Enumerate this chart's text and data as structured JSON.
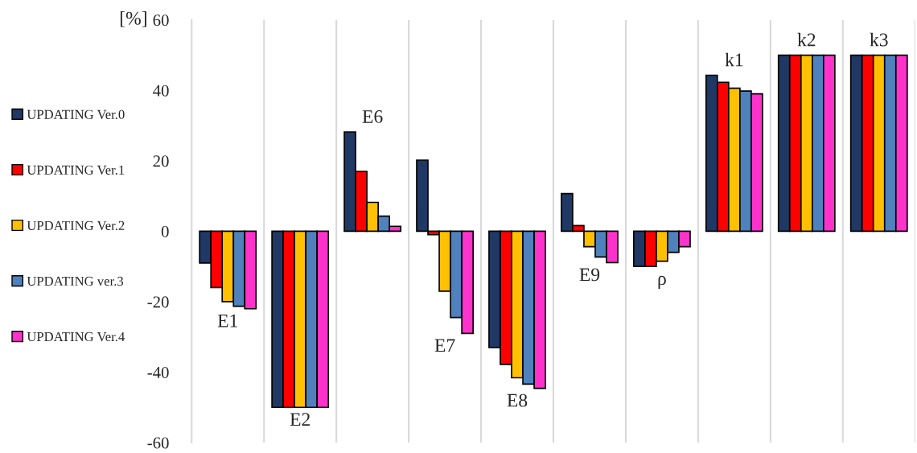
{
  "chart_data": {
    "type": "bar",
    "ylabel": "[%]",
    "categories": [
      "E1",
      "E2",
      "E6",
      "E7",
      "E8",
      "E9",
      "ρ",
      "k1",
      "k2",
      "k3"
    ],
    "series": [
      {
        "name": "UPDATING Ver.0",
        "color": "#203864",
        "values": [
          -9,
          -50,
          28.2,
          20.2,
          -33,
          10.7,
          -10,
          44.3,
          50,
          50
        ]
      },
      {
        "name": "UPDATING Ver.1",
        "color": "#ff0000",
        "values": [
          -16,
          -50,
          17,
          -1,
          -37.8,
          1.6,
          -10,
          42.3,
          50,
          50
        ]
      },
      {
        "name": "UPDATING Ver.2",
        "color": "#ffc000",
        "values": [
          -20,
          -50,
          8.2,
          -17,
          -41.6,
          -4.4,
          -8.5,
          40.6,
          50,
          50
        ]
      },
      {
        "name": "UPDATING ver.3",
        "color": "#4f81bd",
        "values": [
          -21.3,
          -50,
          4.3,
          -24.5,
          -43.4,
          -7.3,
          -6,
          39.8,
          50,
          50
        ]
      },
      {
        "name": "UPDATING Ver.4",
        "color": "#ff33cc",
        "values": [
          -22,
          -50,
          1.4,
          -29,
          -44.6,
          -8.9,
          -4.4,
          39,
          50,
          50
        ]
      }
    ],
    "ylim": [
      -60,
      60
    ],
    "yticks": [
      -60,
      -40,
      -20,
      0,
      20,
      40,
      60
    ],
    "grid": "x",
    "legend": "left"
  }
}
